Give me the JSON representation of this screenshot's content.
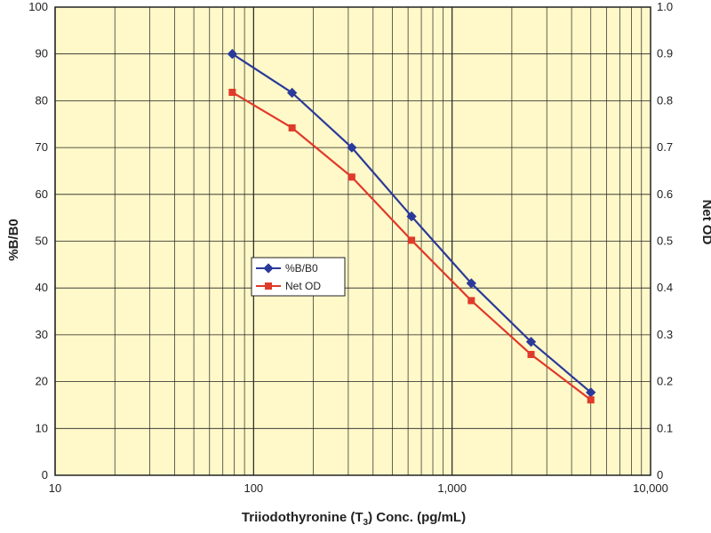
{
  "chart_data": {
    "type": "line",
    "xscale": "log",
    "xlim": [
      10,
      10000
    ],
    "x_tick_labels": [
      "10",
      "100",
      "1,000",
      "10,000"
    ],
    "x_tick_values": [
      10,
      100,
      1000,
      10000
    ],
    "xlabel": {
      "prefix": "Triiodothyronine (T",
      "subscript": "3",
      "suffix": ") Conc. (pg/mL)"
    },
    "ylabel": "%B/B0",
    "ylim": [
      0,
      100
    ],
    "y_ticks": [
      "0",
      "10",
      "20",
      "30",
      "40",
      "50",
      "60",
      "70",
      "80",
      "90",
      "100"
    ],
    "y2label": "Net OD",
    "y2lim": [
      0,
      1.0
    ],
    "y2_ticks": [
      "0",
      "0.1",
      "0.2",
      "0.3",
      "0.4",
      "0.5",
      "0.6",
      "0.7",
      "0.8",
      "0.9",
      "1.0"
    ],
    "grid": true,
    "legend_position": "center-left",
    "x": [
      78.1,
      156.3,
      312.5,
      625,
      1250,
      2500,
      5000
    ],
    "series": [
      {
        "name": "%B/B0",
        "axis": "left",
        "color": "#2b3a9a",
        "marker": "diamond",
        "values": [
          90,
          81.7,
          70,
          55.3,
          41,
          28.5,
          17.7
        ]
      },
      {
        "name": "Net OD",
        "axis": "right",
        "color": "#e03a2a",
        "marker": "square",
        "values": [
          0.818,
          0.742,
          0.637,
          0.502,
          0.373,
          0.258,
          0.161
        ]
      }
    ],
    "colors": {
      "plot_background": "#fff8c8",
      "gridline": "#222222"
    }
  }
}
